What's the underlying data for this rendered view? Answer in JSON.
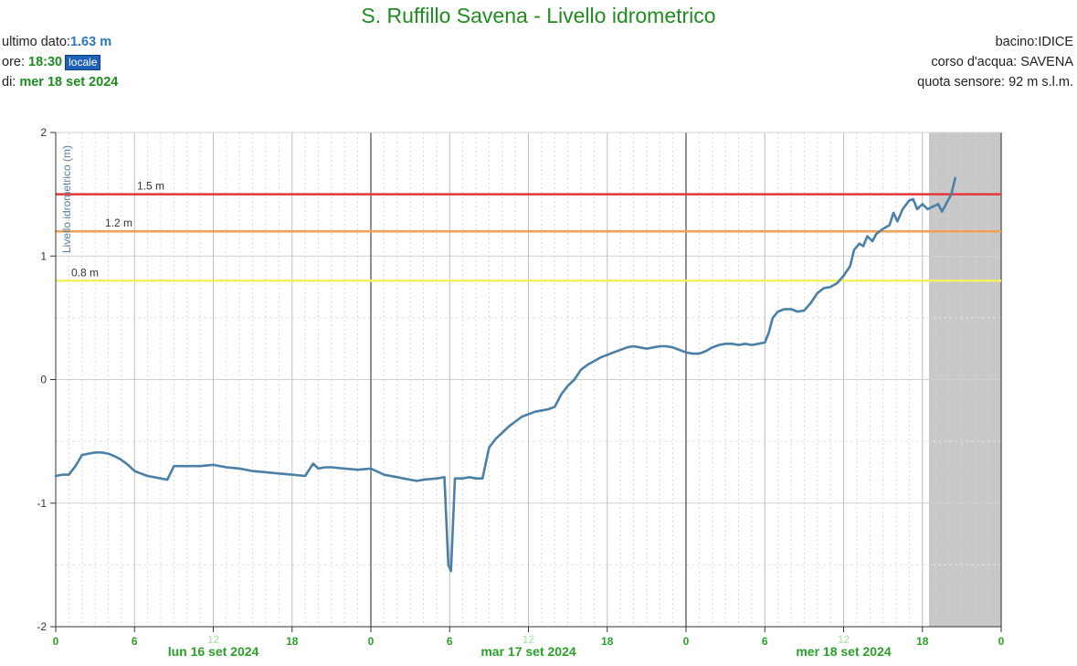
{
  "header": {
    "title": "S. Ruffillo Savena - Livello idrometrico",
    "last_value_label": "ultimo dato:",
    "last_value": "1.63 m",
    "time_label": "ore: ",
    "time_value": "18:30",
    "time_badge": "locale",
    "date_label": "di: ",
    "date_value": "mer 18 set 2024",
    "basin": "bacino:IDICE",
    "river": "corso d'acqua: SAVENA",
    "sensor_altitude": "quota sensore: 92 m s.l.m."
  },
  "colors": {
    "line": "#4a80a8",
    "threshold_red": "#e8383a",
    "threshold_orange": "#f0a050",
    "threshold_yellow": "#f0f060",
    "title_green": "#1e8c1e",
    "forecast_shade": "#c8c8c8"
  },
  "chart_data": {
    "type": "line",
    "title": "S. Ruffillo Savena - Livello idrometrico",
    "ylabel": "Livello idrometrico (m)",
    "ylim": [
      -2,
      2
    ],
    "yticks": [
      "2",
      "1",
      "0",
      "-1",
      "-2"
    ],
    "xlim_hours": [
      0,
      72
    ],
    "xticks": [
      "0",
      "6",
      "12",
      "18",
      "0",
      "6",
      "12",
      "18",
      "0",
      "6",
      "12",
      "18",
      "0"
    ],
    "day_labels": [
      "lun 16 set 2024",
      "mar 17 set 2024",
      "mer 18 set 2024"
    ],
    "thresholds": [
      {
        "label": "1.5 m",
        "value": 1.5,
        "color": "#e8383a"
      },
      {
        "label": "1.2 m",
        "value": 1.2,
        "color": "#f0a050"
      },
      {
        "label": "0.8 m",
        "value": 0.8,
        "color": "#f0f060"
      }
    ],
    "shaded_from_hours": 66.5,
    "grid": true,
    "series": [
      {
        "points": [
          [
            0,
            -0.78
          ],
          [
            0.5,
            -0.77
          ],
          [
            1,
            -0.77
          ],
          [
            1.5,
            -0.7
          ],
          [
            2,
            -0.61
          ],
          [
            2.5,
            -0.6
          ],
          [
            3,
            -0.59
          ],
          [
            3.5,
            -0.59
          ],
          [
            4,
            -0.6
          ],
          [
            4.5,
            -0.62
          ],
          [
            5,
            -0.65
          ],
          [
            5.5,
            -0.69
          ],
          [
            6,
            -0.74
          ],
          [
            6.5,
            -0.76
          ],
          [
            7,
            -0.78
          ],
          [
            7.5,
            -0.79
          ],
          [
            8,
            -0.8
          ],
          [
            8.5,
            -0.81
          ],
          [
            9,
            -0.7
          ],
          [
            9.5,
            -0.7
          ],
          [
            10,
            -0.7
          ],
          [
            11,
            -0.7
          ],
          [
            12,
            -0.69
          ],
          [
            13,
            -0.71
          ],
          [
            14,
            -0.72
          ],
          [
            15,
            -0.74
          ],
          [
            16,
            -0.75
          ],
          [
            17,
            -0.76
          ],
          [
            18,
            -0.77
          ],
          [
            19,
            -0.78
          ],
          [
            19.3,
            -0.73
          ],
          [
            19.6,
            -0.68
          ],
          [
            20,
            -0.72
          ],
          [
            20.5,
            -0.71
          ],
          [
            21,
            -0.71
          ],
          [
            22,
            -0.72
          ],
          [
            23,
            -0.73
          ],
          [
            24,
            -0.72
          ],
          [
            25,
            -0.77
          ],
          [
            26,
            -0.79
          ],
          [
            27,
            -0.81
          ],
          [
            27.5,
            -0.82
          ],
          [
            28,
            -0.81
          ],
          [
            29,
            -0.8
          ],
          [
            29.6,
            -0.79
          ],
          [
            29.9,
            -1.5
          ],
          [
            30.1,
            -1.55
          ],
          [
            30.4,
            -0.8
          ],
          [
            31,
            -0.8
          ],
          [
            31.5,
            -0.79
          ],
          [
            32,
            -0.8
          ],
          [
            32.5,
            -0.8
          ],
          [
            33,
            -0.55
          ],
          [
            33.5,
            -0.48
          ],
          [
            34,
            -0.43
          ],
          [
            34.5,
            -0.38
          ],
          [
            35,
            -0.34
          ],
          [
            35.5,
            -0.3
          ],
          [
            36,
            -0.28
          ],
          [
            36.5,
            -0.26
          ],
          [
            37,
            -0.25
          ],
          [
            37.5,
            -0.24
          ],
          [
            38,
            -0.22
          ],
          [
            38.5,
            -0.12
          ],
          [
            39,
            -0.05
          ],
          [
            39.5,
            0
          ],
          [
            40,
            0.08
          ],
          [
            40.5,
            0.12
          ],
          [
            41,
            0.15
          ],
          [
            41.5,
            0.18
          ],
          [
            42,
            0.2
          ],
          [
            42.5,
            0.22
          ],
          [
            43,
            0.24
          ],
          [
            43.5,
            0.26
          ],
          [
            44,
            0.27
          ],
          [
            44.5,
            0.26
          ],
          [
            45,
            0.25
          ],
          [
            45.5,
            0.26
          ],
          [
            46,
            0.27
          ],
          [
            46.5,
            0.27
          ],
          [
            47,
            0.26
          ],
          [
            47.5,
            0.24
          ],
          [
            48,
            0.22
          ],
          [
            48.5,
            0.21
          ],
          [
            49,
            0.21
          ],
          [
            49.5,
            0.23
          ],
          [
            50,
            0.26
          ],
          [
            50.5,
            0.28
          ],
          [
            51,
            0.29
          ],
          [
            51.5,
            0.29
          ],
          [
            52,
            0.28
          ],
          [
            52.5,
            0.29
          ],
          [
            53,
            0.28
          ],
          [
            53.5,
            0.29
          ],
          [
            54,
            0.3
          ],
          [
            54.3,
            0.38
          ],
          [
            54.6,
            0.5
          ],
          [
            55,
            0.55
          ],
          [
            55.5,
            0.57
          ],
          [
            56,
            0.57
          ],
          [
            56.5,
            0.55
          ],
          [
            57,
            0.56
          ],
          [
            57.5,
            0.62
          ],
          [
            58,
            0.7
          ],
          [
            58.5,
            0.74
          ],
          [
            59,
            0.75
          ],
          [
            59.5,
            0.78
          ],
          [
            60,
            0.84
          ],
          [
            60.5,
            0.92
          ],
          [
            60.8,
            1.05
          ],
          [
            61.2,
            1.1
          ],
          [
            61.5,
            1.08
          ],
          [
            61.8,
            1.16
          ],
          [
            62.2,
            1.12
          ],
          [
            62.5,
            1.18
          ],
          [
            63,
            1.22
          ],
          [
            63.5,
            1.25
          ],
          [
            63.8,
            1.35
          ],
          [
            64.1,
            1.28
          ],
          [
            64.5,
            1.38
          ],
          [
            65,
            1.45
          ],
          [
            65.3,
            1.46
          ],
          [
            65.6,
            1.38
          ],
          [
            66,
            1.42
          ],
          [
            66.4,
            1.38
          ],
          [
            66.8,
            1.4
          ],
          [
            67.2,
            1.42
          ],
          [
            67.5,
            1.36
          ],
          [
            67.8,
            1.42
          ],
          [
            68.2,
            1.5
          ],
          [
            68.5,
            1.63
          ]
        ]
      }
    ]
  }
}
